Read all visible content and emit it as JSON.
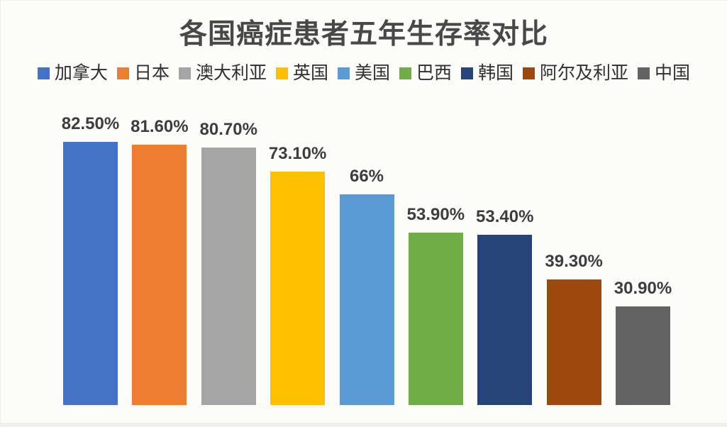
{
  "chart_data": {
    "type": "bar",
    "title": "各国癌症患者五年生存率对比",
    "categories": [
      "加拿大",
      "日本",
      "澳大利亚",
      "英国",
      "美国",
      "巴西",
      "韩国",
      "阿尔及利亚",
      "中国"
    ],
    "values": [
      82.5,
      81.6,
      80.7,
      73.1,
      66,
      53.9,
      53.4,
      39.3,
      30.9
    ],
    "value_labels": [
      "82.50%",
      "81.60%",
      "80.70%",
      "73.10%",
      "66%",
      "53.90%",
      "53.40%",
      "39.30%",
      "30.90%"
    ],
    "series_colors": [
      "#4472c4",
      "#ed7d31",
      "#a5a5a5",
      "#ffc000",
      "#5b9bd5",
      "#70ad47",
      "#264478",
      "#9e480e",
      "#636363"
    ],
    "xlabel": "",
    "ylabel": "",
    "ylim": [
      0,
      93
    ],
    "grid": false,
    "legend_position": "top",
    "axis_labels_shown": false
  },
  "style": {
    "background_color": "#fcfcf9",
    "title_color": "#484848",
    "label_color": "#3d3d3d",
    "legend_text_color": "#2f2f2f"
  }
}
